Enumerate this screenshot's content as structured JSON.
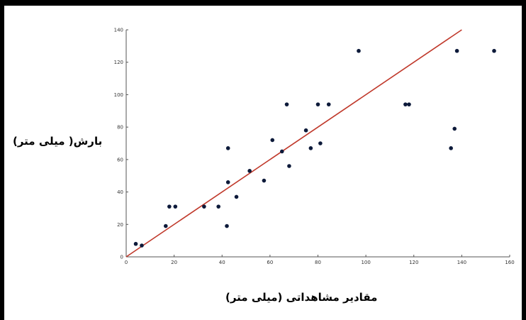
{
  "chart_data": {
    "type": "scatter",
    "xlabel": "مقادیر مشاهداتی (میلی متر)",
    "ylabel": "بارش( میلی متر)",
    "xlim": [
      0,
      160
    ],
    "ylim": [
      0,
      140
    ],
    "xticks": [
      "0",
      "20",
      "40",
      "60",
      "80",
      "100",
      "120",
      "140",
      "160"
    ],
    "yticks": [
      "0",
      "20",
      "40",
      "60",
      "80",
      "100",
      "120",
      "140"
    ],
    "grid": false,
    "point_color": "#0d1a3a",
    "line_color": "#c0392b",
    "points": [
      {
        "x": 4,
        "y": 8
      },
      {
        "x": 6.5,
        "y": 7
      },
      {
        "x": 16.5,
        "y": 19
      },
      {
        "x": 18,
        "y": 31
      },
      {
        "x": 20.5,
        "y": 31
      },
      {
        "x": 32.5,
        "y": 31
      },
      {
        "x": 38.5,
        "y": 31
      },
      {
        "x": 42,
        "y": 19
      },
      {
        "x": 42.5,
        "y": 67
      },
      {
        "x": 42.5,
        "y": 46
      },
      {
        "x": 46,
        "y": 37
      },
      {
        "x": 51.5,
        "y": 53
      },
      {
        "x": 57.5,
        "y": 47
      },
      {
        "x": 61,
        "y": 72
      },
      {
        "x": 65,
        "y": 65
      },
      {
        "x": 67,
        "y": 94
      },
      {
        "x": 68,
        "y": 56
      },
      {
        "x": 75,
        "y": 78
      },
      {
        "x": 77,
        "y": 67
      },
      {
        "x": 80,
        "y": 94
      },
      {
        "x": 81,
        "y": 70
      },
      {
        "x": 84.5,
        "y": 94
      },
      {
        "x": 97,
        "y": 127
      },
      {
        "x": 116.5,
        "y": 94
      },
      {
        "x": 118,
        "y": 94
      },
      {
        "x": 135.5,
        "y": 67
      },
      {
        "x": 137,
        "y": 79
      },
      {
        "x": 138,
        "y": 127
      },
      {
        "x": 153.5,
        "y": 127
      }
    ],
    "fit_line": {
      "x": [
        0,
        140
      ],
      "y": [
        0,
        140
      ]
    }
  }
}
